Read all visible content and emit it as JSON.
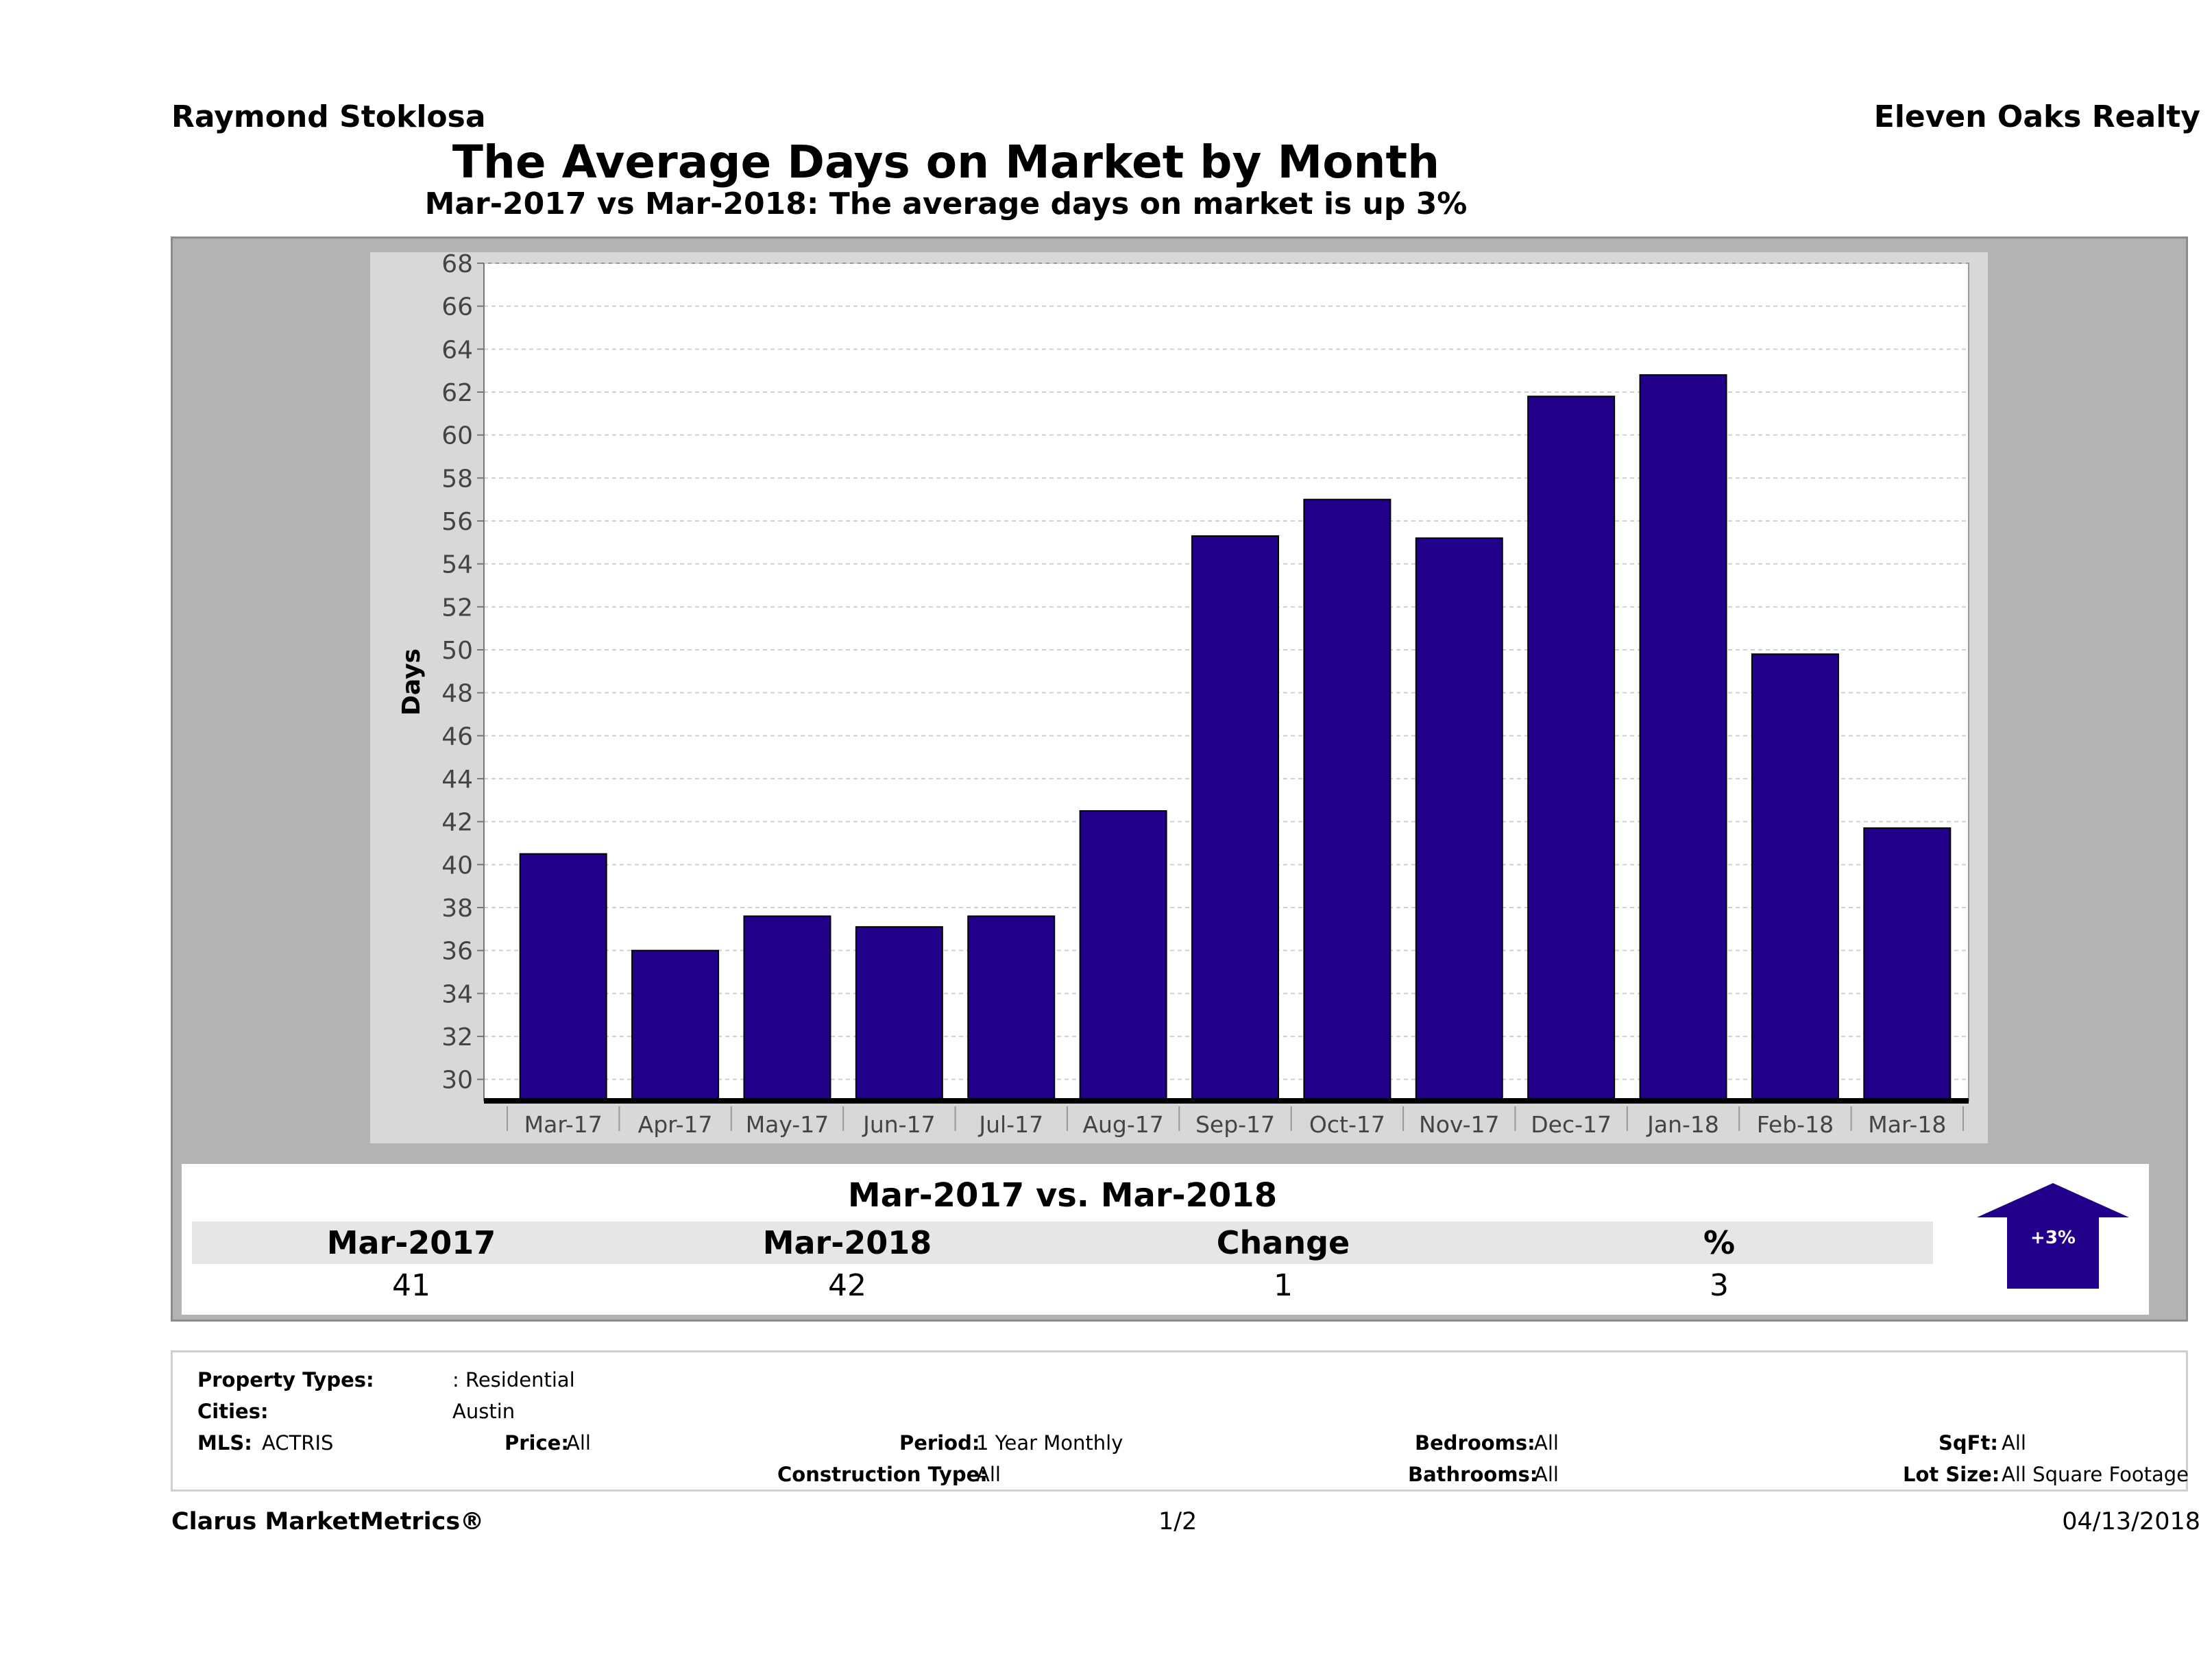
{
  "header": {
    "agent": "Raymond Stoklosa",
    "company": "Eleven Oaks Realty",
    "title": "The Average Days on Market by Month",
    "subtitle": "Mar-2017 vs Mar-2018: The average days on market is up 3%"
  },
  "chart_data": {
    "type": "bar",
    "categories": [
      "Mar-17",
      "Apr-17",
      "May-17",
      "Jun-17",
      "Jul-17",
      "Aug-17",
      "Sep-17",
      "Oct-17",
      "Nov-17",
      "Dec-17",
      "Jan-18",
      "Feb-18",
      "Mar-18"
    ],
    "values": [
      40.5,
      36,
      37.6,
      37.1,
      37.6,
      42.5,
      55.3,
      57,
      55.2,
      61.8,
      62.8,
      49.8,
      41.7
    ],
    "ylabel": "Days",
    "ylim": [
      29,
      68
    ],
    "yticks": [
      30,
      32,
      34,
      36,
      38,
      40,
      42,
      44,
      46,
      48,
      50,
      52,
      54,
      56,
      58,
      60,
      62,
      64,
      66,
      68
    ],
    "grid": true,
    "bar_color": "#22008a"
  },
  "comparison": {
    "title": "Mar-2017 vs. Mar-2018",
    "headers": [
      "Mar-2017",
      "Mar-2018",
      "Change",
      "%"
    ],
    "values": [
      "41",
      "42",
      "1",
      "3"
    ],
    "badge": "+3%",
    "arrow_direction": "up",
    "arrow_color": "#22008a"
  },
  "criteria": {
    "property_types_label": "Property Types:",
    "property_types_value": ": Residential",
    "cities_label": "Cities:",
    "cities_value": "Austin",
    "mls_label": "MLS:",
    "mls_value": "ACTRIS",
    "price_label": "Price:",
    "price_value": "All",
    "period_label": "Period:",
    "period_value": "1 Year Monthly",
    "construction_label": "Construction Type:",
    "construction_value": "All",
    "bedrooms_label": "Bedrooms:",
    "bedrooms_value": "All",
    "bathrooms_label": "Bathrooms:",
    "bathrooms_value": "All",
    "sqft_label": "SqFt:",
    "sqft_value": "All",
    "lot_label": "Lot Size:",
    "lot_value": "All Square Footage"
  },
  "footer": {
    "brand": "Clarus MarketMetrics®",
    "page": "1/2",
    "date": "04/13/2018"
  }
}
